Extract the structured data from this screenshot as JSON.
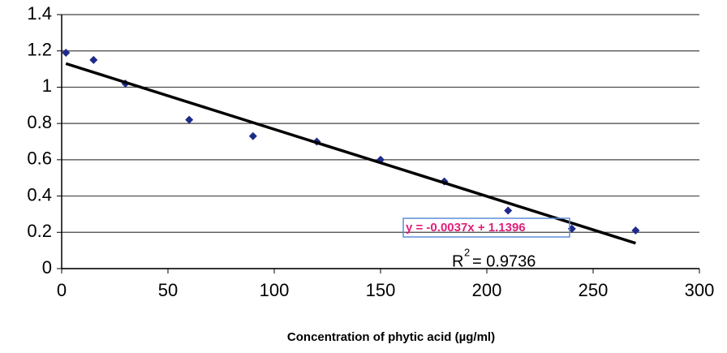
{
  "chart_data": {
    "type": "scatter",
    "x_label": "Concentration of phytic acid (µg/ml)",
    "series": [
      {
        "x": [
          2,
          15,
          30,
          60,
          90,
          120,
          150,
          180,
          210,
          240,
          270
        ],
        "values": [
          1.19,
          1.15,
          1.02,
          0.82,
          0.73,
          0.7,
          0.6,
          0.48,
          0.32,
          0.22,
          0.21
        ],
        "color": "#1f2a8a"
      }
    ],
    "trendline": {
      "x": [
        2,
        270
      ],
      "values": [
        1.13,
        0.14
      ],
      "color": "#000000",
      "equation": "y = -0.0037x + 1.1396",
      "r2_label": "R",
      "r2_sup": "2",
      "r2_value": "= 0.9736"
    },
    "xlim": [
      0,
      300
    ],
    "xticks": [
      0,
      50,
      100,
      150,
      200,
      250,
      300
    ],
    "ylim": [
      0,
      1.4
    ],
    "yticks": [
      0,
      0.2,
      0.4,
      0.6,
      0.8,
      1,
      1.2,
      1.4
    ],
    "grid": true
  }
}
